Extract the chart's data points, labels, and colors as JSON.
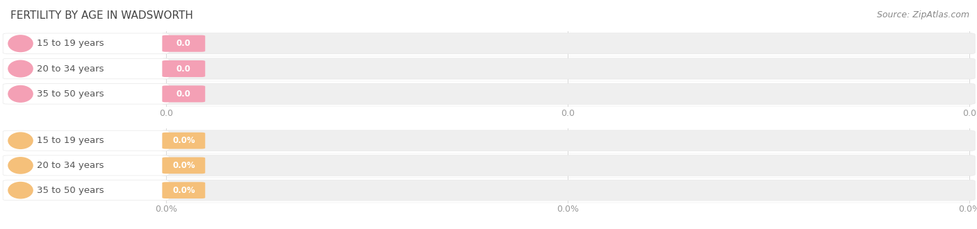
{
  "title": "FERTILITY BY AGE IN WADSWORTH",
  "source_text": "Source: ZipAtlas.com",
  "top_section": {
    "categories": [
      "15 to 19 years",
      "20 to 34 years",
      "35 to 50 years"
    ],
    "values": [
      0.0,
      0.0,
      0.0
    ],
    "bar_color": "#f4a0b5",
    "value_text": "0.0"
  },
  "bottom_section": {
    "categories": [
      "15 to 19 years",
      "20 to 34 years",
      "35 to 50 years"
    ],
    "values": [
      0.0,
      0.0,
      0.0
    ],
    "bar_color": "#f5c07a",
    "value_text": "0.0%"
  },
  "background_color": "#ffffff",
  "bar_bg_color": "#efefef",
  "bar_bg_edge_color": "#e5e5e5",
  "label_bg_color": "#ffffff",
  "label_edge_color": "#e8e8e8",
  "grid_color": "#d8d8d8",
  "tick_color": "#999999",
  "title_color": "#444444",
  "label_text_color": "#555555",
  "source_color": "#888888",
  "title_fontsize": 11,
  "label_fontsize": 9.5,
  "value_fontsize": 8.5,
  "tick_fontsize": 9,
  "source_fontsize": 9
}
